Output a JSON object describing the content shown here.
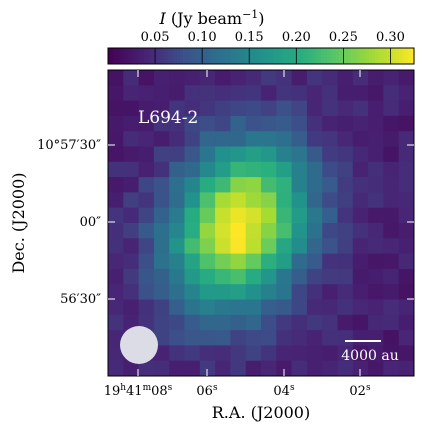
{
  "chart_data": {
    "type": "heatmap",
    "colorbar": {
      "label": "I (Jy beam⁻¹)",
      "label_italic_part": "I",
      "label_rest": " (Jy beam",
      "label_exp": "−1",
      "label_close": ")",
      "ticks": [
        "0.05",
        "0.10",
        "0.15",
        "0.20",
        "0.25",
        "0.30"
      ],
      "tick_values": [
        0.05,
        0.1,
        0.15,
        0.2,
        0.25,
        0.3
      ],
      "range": [
        0.0,
        0.325
      ],
      "colormap": "viridis"
    },
    "xlabel": "R.A. (J2000)",
    "ylabel": "Dec. (J2000)",
    "x_ticks": [
      "19h41m08s",
      "06s",
      "04s",
      "02s"
    ],
    "y_ticks": [
      "10°57′30″",
      "00″",
      "56′30″"
    ],
    "annotations": {
      "source_name": "L694-2",
      "scale_bar": "4000 au",
      "beam": "beam ellipse (bottom-left)"
    },
    "peak": {
      "value": 0.32,
      "location": "center, slightly south of map centre"
    },
    "grid": false
  },
  "colors": {
    "low": "#440154",
    "mid": "#21918c",
    "high": "#fde725",
    "beam": "#dcdce6"
  }
}
